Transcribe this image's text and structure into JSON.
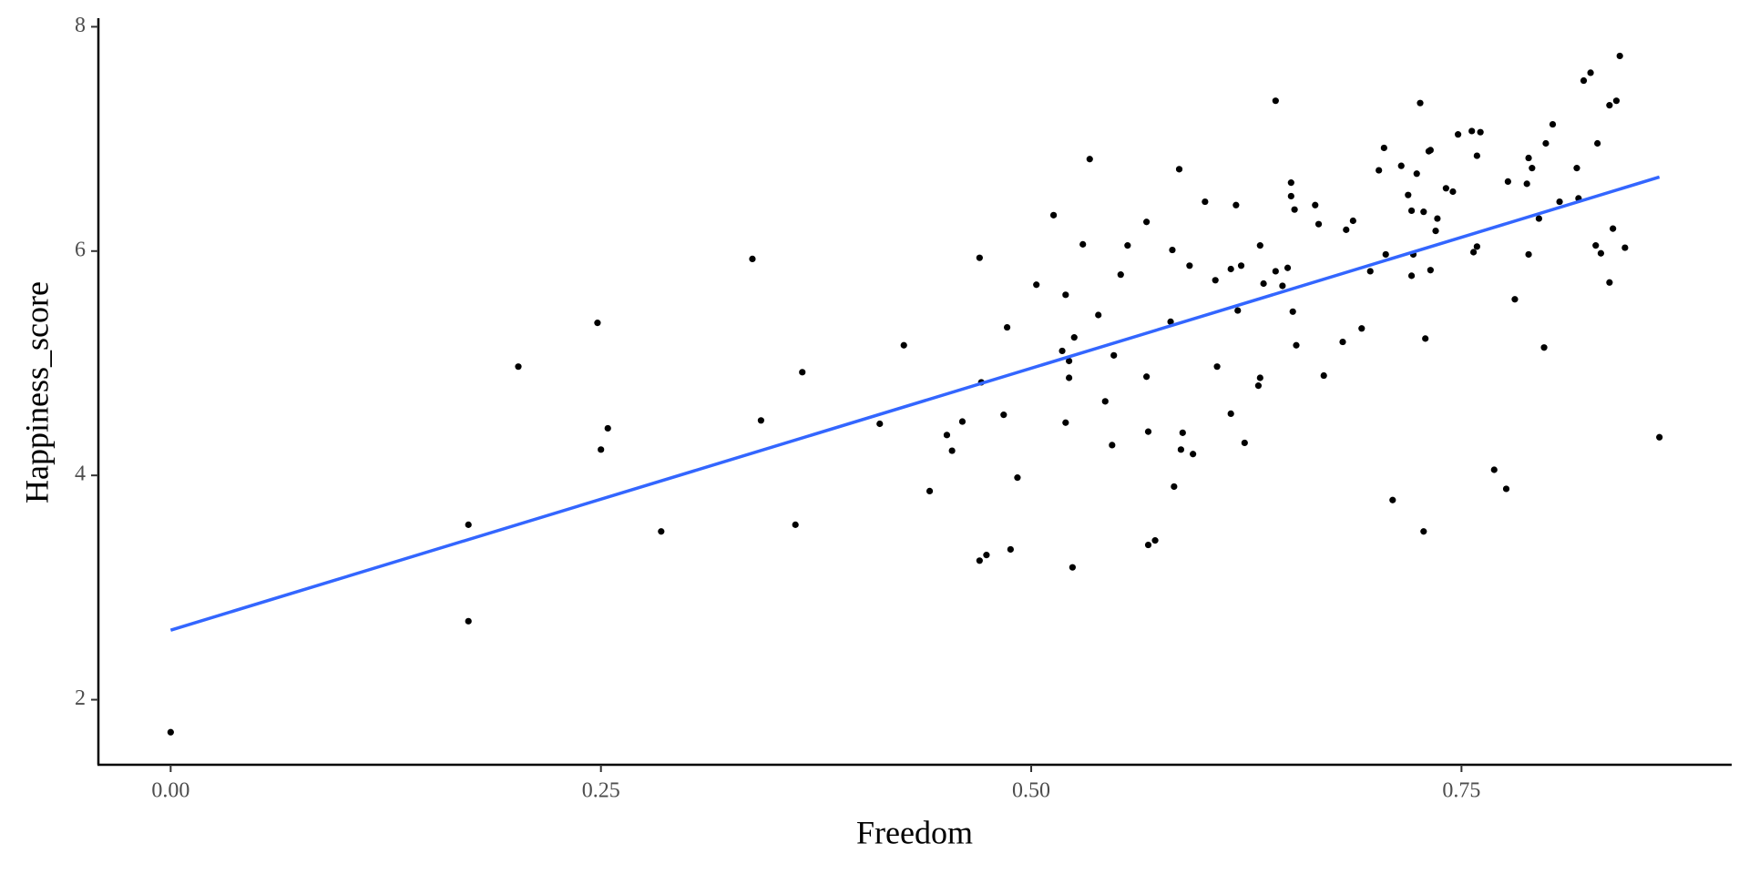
{
  "chart_data": {
    "type": "scatter",
    "x_label": "Freedom",
    "y_label": "Happiness_score",
    "xlim": [
      -0.042,
      0.907
    ],
    "ylim": [
      1.42,
      8.06
    ],
    "xticks": [
      {
        "value": 0,
        "label": "0.00"
      },
      {
        "value": 0.25,
        "label": "0.25"
      },
      {
        "value": 0.5,
        "label": "0.50"
      },
      {
        "value": 0.75,
        "label": "0.75"
      }
    ],
    "yticks": [
      2,
      4,
      6,
      8
    ],
    "grid": false,
    "points": {
      "color": "#000000",
      "x": [
        0.0,
        0.173,
        0.173,
        0.202,
        0.248,
        0.254,
        0.25,
        0.285,
        0.338,
        0.343,
        0.363,
        0.367,
        0.412,
        0.426,
        0.441,
        0.451,
        0.454,
        0.46,
        0.47,
        0.471,
        0.47,
        0.474,
        0.484,
        0.486,
        0.488,
        0.492,
        0.503,
        0.513,
        0.518,
        0.52,
        0.52,
        0.522,
        0.522,
        0.525,
        0.524,
        0.53,
        0.534,
        0.539,
        0.543,
        0.547,
        0.548,
        0.552,
        0.556,
        0.567,
        0.567,
        0.568,
        0.568,
        0.572,
        0.581,
        0.582,
        0.583,
        0.586,
        0.587,
        0.588,
        0.592,
        0.594,
        0.601,
        0.607,
        0.608,
        0.616,
        0.616,
        0.619,
        0.62,
        0.622,
        0.624,
        0.632,
        0.633,
        0.633,
        0.635,
        0.642,
        0.642,
        0.646,
        0.649,
        0.651,
        0.651,
        0.652,
        0.653,
        0.654,
        0.665,
        0.667,
        0.67,
        0.681,
        0.683,
        0.687,
        0.692,
        0.697,
        0.702,
        0.705,
        0.706,
        0.71,
        0.715,
        0.719,
        0.721,
        0.721,
        0.722,
        0.724,
        0.726,
        0.728,
        0.728,
        0.729,
        0.731,
        0.732,
        0.732,
        0.735,
        0.736,
        0.741,
        0.745,
        0.748,
        0.756,
        0.757,
        0.759,
        0.759,
        0.761,
        0.769,
        0.776,
        0.777,
        0.781,
        0.788,
        0.789,
        0.789,
        0.791,
        0.795,
        0.798,
        0.799,
        0.803,
        0.807,
        0.817,
        0.818,
        0.821,
        0.825,
        0.828,
        0.829,
        0.831,
        0.836,
        0.836,
        0.838,
        0.84,
        0.845,
        0.842,
        0.865
      ],
      "y": [
        1.71,
        3.56,
        2.7,
        4.97,
        5.36,
        4.42,
        4.23,
        3.5,
        5.93,
        4.49,
        3.56,
        4.92,
        4.46,
        5.16,
        3.86,
        4.36,
        4.22,
        4.48,
        5.94,
        4.83,
        3.24,
        3.29,
        4.54,
        5.32,
        3.34,
        3.98,
        5.7,
        6.32,
        5.11,
        5.61,
        4.47,
        5.02,
        4.87,
        5.23,
        3.18,
        6.06,
        6.82,
        5.43,
        4.66,
        4.27,
        5.07,
        5.79,
        6.05,
        6.26,
        4.88,
        4.39,
        3.38,
        3.42,
        5.37,
        6.01,
        3.9,
        6.73,
        4.23,
        4.38,
        5.87,
        4.19,
        6.44,
        5.74,
        4.97,
        5.84,
        4.55,
        6.41,
        5.47,
        5.87,
        4.29,
        4.8,
        4.87,
        6.05,
        5.71,
        7.34,
        5.82,
        5.69,
        5.85,
        6.61,
        6.49,
        5.46,
        6.37,
        5.16,
        6.41,
        6.24,
        4.89,
        5.19,
        6.19,
        6.27,
        5.31,
        5.82,
        6.72,
        6.92,
        5.97,
        3.78,
        6.76,
        6.5,
        5.78,
        6.36,
        5.97,
        6.69,
        7.32,
        6.35,
        3.5,
        5.22,
        6.89,
        6.9,
        5.83,
        6.18,
        6.29,
        6.56,
        6.53,
        7.04,
        7.07,
        5.99,
        6.04,
        6.85,
        7.06,
        4.05,
        3.88,
        6.62,
        5.57,
        6.6,
        6.83,
        5.97,
        6.74,
        6.29,
        5.14,
        6.96,
        7.13,
        6.44,
        6.74,
        6.47,
        7.52,
        7.59,
        6.05,
        6.96,
        5.98,
        5.72,
        7.3,
        6.2,
        7.34,
        6.03,
        7.74,
        4.34
      ]
    },
    "fit_line": {
      "color": "#3366ff",
      "x": [
        0,
        0.865
      ],
      "y": [
        2.62,
        6.66
      ]
    }
  }
}
